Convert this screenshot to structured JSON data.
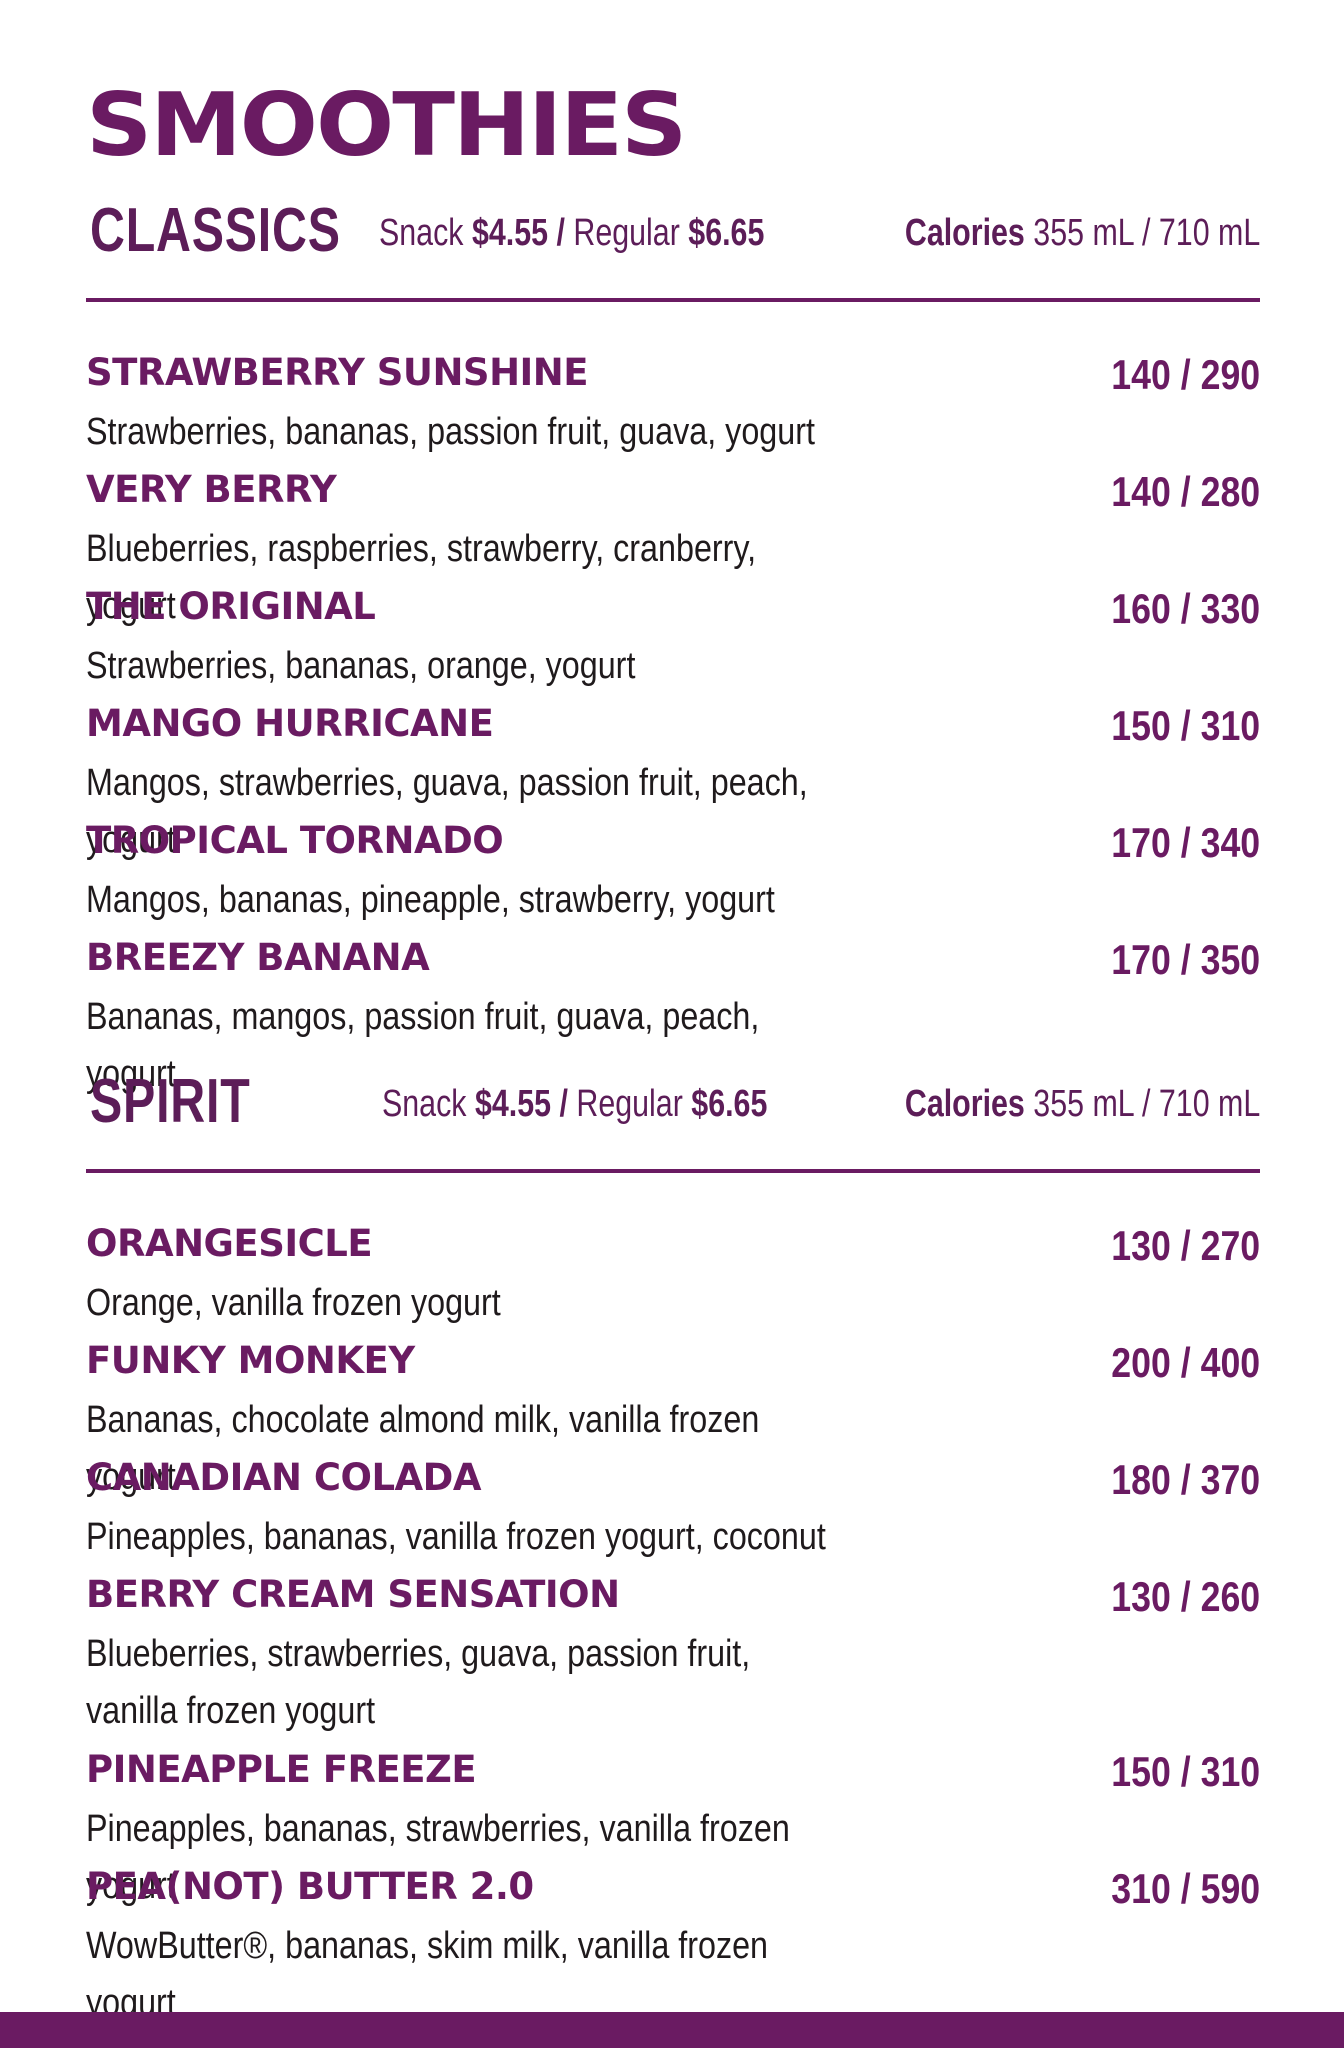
{
  "title": "SMOOTHIES",
  "sections": [
    {
      "name": "CLASSICS",
      "snack_label": "Snack",
      "snack_price": "$4.55",
      "separator": "/",
      "regular_label": "Regular",
      "regular_price": "$6.65",
      "calories_label": "Calories",
      "calories_sizes": "355 mL / 710 mL",
      "items": [
        {
          "name": "STRAWBERRY SUNSHINE",
          "calories": "140 / 290",
          "description": "Strawberries, bananas, passion fruit, guava, yogurt"
        },
        {
          "name": "VERY BERRY",
          "calories": "140 / 280",
          "description": "Blueberries, raspberries, strawberry, cranberry, yogurt"
        },
        {
          "name": "THE ORIGINAL",
          "calories": "160 / 330",
          "description": "Strawberries, bananas, orange, yogurt"
        },
        {
          "name": "MANGO HURRICANE",
          "calories": "150 / 310",
          "description": "Mangos, strawberries, guava, passion fruit, peach, yogurt"
        },
        {
          "name": "TROPICAL TORNADO",
          "calories": "170 / 340",
          "description": "Mangos, bananas, pineapple, strawberry, yogurt"
        },
        {
          "name": "BREEZY BANANA",
          "calories": "170 / 350",
          "description": "Bananas, mangos, passion fruit, guava, peach, yogurt"
        }
      ]
    },
    {
      "name": "SPIRIT",
      "snack_label": "Snack",
      "snack_price": "$4.55",
      "separator": "/",
      "regular_label": "Regular",
      "regular_price": "$6.65",
      "calories_label": "Calories",
      "calories_sizes": "355 mL / 710 mL",
      "items": [
        {
          "name": "ORANGESICLE",
          "calories": "130 / 270",
          "description": "Orange, vanilla frozen yogurt"
        },
        {
          "name": "FUNKY MONKEY",
          "calories": "200 / 400",
          "description": "Bananas, chocolate almond milk, vanilla frozen yogurt"
        },
        {
          "name": "CANADIAN COLADA",
          "calories": "180 / 370",
          "description": "Pineapples, bananas, vanilla frozen yogurt, coconut"
        },
        {
          "name": "BERRY CREAM SENSATION",
          "calories": "130 / 260",
          "description": "Blueberries, strawberries, guava, passion fruit,",
          "description_line2": "vanilla frozen yogurt"
        },
        {
          "name": "PINEAPPLE FREEZE",
          "calories": "150 / 310",
          "description": "Pineapples, bananas, strawberries, vanilla frozen yogurt"
        },
        {
          "name": "PEA(NOT) BUTTER 2.0",
          "calories": "310 / 590",
          "description": "WowButter®, bananas, skim milk, vanilla frozen yogurt"
        }
      ]
    }
  ],
  "colors": {
    "brand_purple": "#6a1b62",
    "text_dark": "#1f1a1c"
  }
}
